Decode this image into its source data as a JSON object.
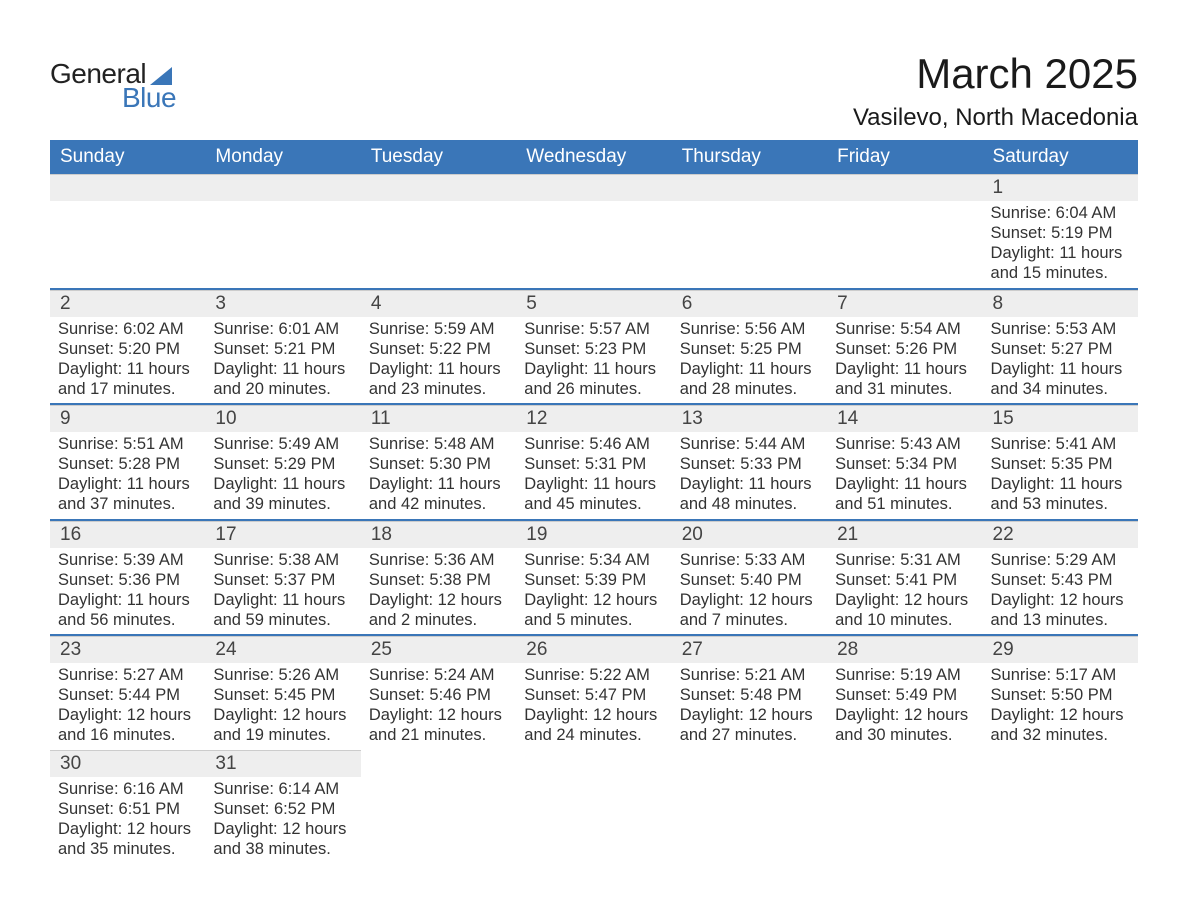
{
  "logo": {
    "word1": "General",
    "word2": "Blue"
  },
  "title": "March 2025",
  "location": "Vasilevo, North Macedonia",
  "header_bg": "#3a76b8",
  "header_fg": "#ffffff",
  "daynum_bg": "#eeeeee",
  "row_border_color": "#3a76b8",
  "text_color": "#333333",
  "labels": {
    "sunrise": "Sunrise:",
    "sunset": "Sunset:",
    "daylight": "Daylight:"
  },
  "day_names": [
    "Sunday",
    "Monday",
    "Tuesday",
    "Wednesday",
    "Thursday",
    "Friday",
    "Saturday"
  ],
  "weeks": [
    [
      null,
      null,
      null,
      null,
      null,
      null,
      {
        "n": "1",
        "sunrise": "6:04 AM",
        "sunset": "5:19 PM",
        "dl": "11 hours and 15 minutes."
      }
    ],
    [
      {
        "n": "2",
        "sunrise": "6:02 AM",
        "sunset": "5:20 PM",
        "dl": "11 hours and 17 minutes."
      },
      {
        "n": "3",
        "sunrise": "6:01 AM",
        "sunset": "5:21 PM",
        "dl": "11 hours and 20 minutes."
      },
      {
        "n": "4",
        "sunrise": "5:59 AM",
        "sunset": "5:22 PM",
        "dl": "11 hours and 23 minutes."
      },
      {
        "n": "5",
        "sunrise": "5:57 AM",
        "sunset": "5:23 PM",
        "dl": "11 hours and 26 minutes."
      },
      {
        "n": "6",
        "sunrise": "5:56 AM",
        "sunset": "5:25 PM",
        "dl": "11 hours and 28 minutes."
      },
      {
        "n": "7",
        "sunrise": "5:54 AM",
        "sunset": "5:26 PM",
        "dl": "11 hours and 31 minutes."
      },
      {
        "n": "8",
        "sunrise": "5:53 AM",
        "sunset": "5:27 PM",
        "dl": "11 hours and 34 minutes."
      }
    ],
    [
      {
        "n": "9",
        "sunrise": "5:51 AM",
        "sunset": "5:28 PM",
        "dl": "11 hours and 37 minutes."
      },
      {
        "n": "10",
        "sunrise": "5:49 AM",
        "sunset": "5:29 PM",
        "dl": "11 hours and 39 minutes."
      },
      {
        "n": "11",
        "sunrise": "5:48 AM",
        "sunset": "5:30 PM",
        "dl": "11 hours and 42 minutes."
      },
      {
        "n": "12",
        "sunrise": "5:46 AM",
        "sunset": "5:31 PM",
        "dl": "11 hours and 45 minutes."
      },
      {
        "n": "13",
        "sunrise": "5:44 AM",
        "sunset": "5:33 PM",
        "dl": "11 hours and 48 minutes."
      },
      {
        "n": "14",
        "sunrise": "5:43 AM",
        "sunset": "5:34 PM",
        "dl": "11 hours and 51 minutes."
      },
      {
        "n": "15",
        "sunrise": "5:41 AM",
        "sunset": "5:35 PM",
        "dl": "11 hours and 53 minutes."
      }
    ],
    [
      {
        "n": "16",
        "sunrise": "5:39 AM",
        "sunset": "5:36 PM",
        "dl": "11 hours and 56 minutes."
      },
      {
        "n": "17",
        "sunrise": "5:38 AM",
        "sunset": "5:37 PM",
        "dl": "11 hours and 59 minutes."
      },
      {
        "n": "18",
        "sunrise": "5:36 AM",
        "sunset": "5:38 PM",
        "dl": "12 hours and 2 minutes."
      },
      {
        "n": "19",
        "sunrise": "5:34 AM",
        "sunset": "5:39 PM",
        "dl": "12 hours and 5 minutes."
      },
      {
        "n": "20",
        "sunrise": "5:33 AM",
        "sunset": "5:40 PM",
        "dl": "12 hours and 7 minutes."
      },
      {
        "n": "21",
        "sunrise": "5:31 AM",
        "sunset": "5:41 PM",
        "dl": "12 hours and 10 minutes."
      },
      {
        "n": "22",
        "sunrise": "5:29 AM",
        "sunset": "5:43 PM",
        "dl": "12 hours and 13 minutes."
      }
    ],
    [
      {
        "n": "23",
        "sunrise": "5:27 AM",
        "sunset": "5:44 PM",
        "dl": "12 hours and 16 minutes."
      },
      {
        "n": "24",
        "sunrise": "5:26 AM",
        "sunset": "5:45 PM",
        "dl": "12 hours and 19 minutes."
      },
      {
        "n": "25",
        "sunrise": "5:24 AM",
        "sunset": "5:46 PM",
        "dl": "12 hours and 21 minutes."
      },
      {
        "n": "26",
        "sunrise": "5:22 AM",
        "sunset": "5:47 PM",
        "dl": "12 hours and 24 minutes."
      },
      {
        "n": "27",
        "sunrise": "5:21 AM",
        "sunset": "5:48 PM",
        "dl": "12 hours and 27 minutes."
      },
      {
        "n": "28",
        "sunrise": "5:19 AM",
        "sunset": "5:49 PM",
        "dl": "12 hours and 30 minutes."
      },
      {
        "n": "29",
        "sunrise": "5:17 AM",
        "sunset": "5:50 PM",
        "dl": "12 hours and 32 minutes."
      }
    ],
    [
      {
        "n": "30",
        "sunrise": "6:16 AM",
        "sunset": "6:51 PM",
        "dl": "12 hours and 35 minutes."
      },
      {
        "n": "31",
        "sunrise": "6:14 AM",
        "sunset": "6:52 PM",
        "dl": "12 hours and 38 minutes."
      },
      null,
      null,
      null,
      null,
      null
    ]
  ]
}
